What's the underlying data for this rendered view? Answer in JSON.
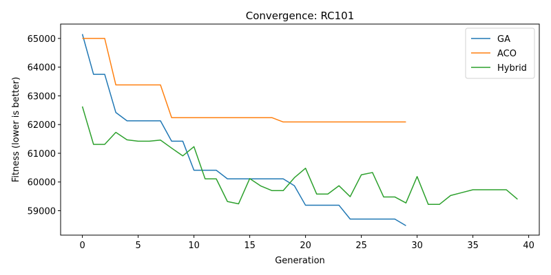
{
  "chart_data": {
    "type": "line",
    "title": "Convergence: RC101",
    "xlabel": "Generation",
    "ylabel": "Fitness (lower is better)",
    "xlim": [
      -1.95,
      40.95
    ],
    "ylim": [
      58150,
      65500
    ],
    "x_ticks": [
      0,
      5,
      10,
      15,
      20,
      25,
      30,
      35,
      40
    ],
    "y_ticks": [
      59000,
      60000,
      61000,
      62000,
      63000,
      64000,
      65000
    ],
    "grid": false,
    "legend": {
      "position": "top-right"
    },
    "series": [
      {
        "name": "GA",
        "color": "#1f77b4",
        "x": [
          0,
          1,
          2,
          3,
          4,
          5,
          6,
          7,
          8,
          9,
          10,
          11,
          12,
          13,
          14,
          15,
          16,
          17,
          18,
          19,
          20,
          21,
          22,
          23,
          24,
          25,
          26,
          27,
          28,
          29
        ],
        "y": [
          65150,
          63750,
          63750,
          62420,
          62130,
          62130,
          62130,
          62130,
          61420,
          61420,
          60410,
          60410,
          60410,
          60110,
          60110,
          60110,
          60110,
          60110,
          60110,
          59870,
          59190,
          59190,
          59190,
          59190,
          58710,
          58710,
          58710,
          58710,
          58710,
          58480
        ]
      },
      {
        "name": "ACO",
        "color": "#ff7f0e",
        "x": [
          0,
          1,
          2,
          3,
          4,
          5,
          6,
          7,
          8,
          9,
          10,
          11,
          12,
          13,
          14,
          15,
          16,
          17,
          18,
          19,
          20,
          21,
          22,
          23,
          24,
          25,
          26,
          27,
          28,
          29
        ],
        "y": [
          65000,
          65000,
          65000,
          63380,
          63380,
          63380,
          63380,
          63380,
          62240,
          62240,
          62240,
          62240,
          62240,
          62240,
          62240,
          62240,
          62240,
          62240,
          62090,
          62090,
          62090,
          62090,
          62090,
          62090,
          62090,
          62090,
          62090,
          62090,
          62090,
          62090
        ]
      },
      {
        "name": "Hybrid",
        "color": "#2ca02c",
        "x": [
          0,
          1,
          2,
          3,
          4,
          5,
          6,
          7,
          8,
          9,
          10,
          11,
          12,
          13,
          14,
          15,
          16,
          17,
          18,
          19,
          20,
          21,
          22,
          23,
          24,
          25,
          26,
          27,
          28,
          29,
          30,
          31,
          32,
          33,
          34,
          35,
          36,
          37,
          38,
          39
        ],
        "y": [
          62630,
          61310,
          61310,
          61730,
          61470,
          61420,
          61420,
          61460,
          61180,
          60910,
          61230,
          60110,
          60110,
          59320,
          59240,
          60120,
          59860,
          59700,
          59700,
          60150,
          60480,
          59580,
          59580,
          59870,
          59490,
          60250,
          60330,
          59480,
          59480,
          59270,
          60190,
          59220,
          59220,
          59530,
          59630,
          59730,
          59730,
          59730,
          59730,
          59400
        ]
      }
    ]
  }
}
